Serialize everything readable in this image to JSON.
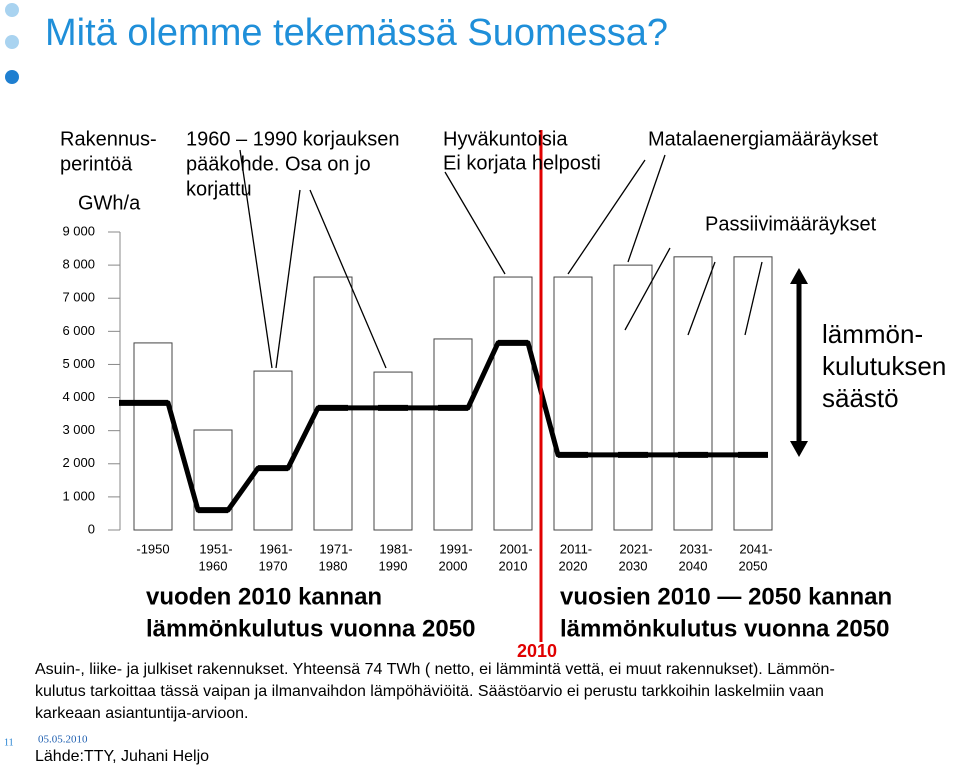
{
  "title": "Mitä olemme tekemässä Suomessa?",
  "chart_data": {
    "type": "bar",
    "y_label": "GWh/a",
    "categories": [
      [
        "-1950"
      ],
      [
        "1951-",
        "1960"
      ],
      [
        "1961-",
        "1970"
      ],
      [
        "1971-",
        "1980"
      ],
      [
        "1981-",
        "1990"
      ],
      [
        "1991-",
        "2000"
      ],
      [
        "2001-",
        "2010"
      ],
      [
        "2011-",
        "2020"
      ],
      [
        "2021-",
        "2030"
      ],
      [
        "2031-",
        "2040"
      ],
      [
        "2041-",
        "2050"
      ]
    ],
    "values": [
      5650,
      3020,
      4800,
      7640,
      4770,
      5770,
      7640,
      7640,
      8000,
      8250,
      8250
    ],
    "color": "#ffffff",
    "line_values": [
      3840,
      600,
      1870,
      3690,
      3690,
      3690,
      5650,
      2270,
      2270,
      2270,
      2270
    ],
    "line_color": "#000000",
    "ylim": [
      0,
      9000
    ],
    "yticks": [
      0,
      {
        "value": 1000,
        "label": "1 000"
      },
      {
        "value": 2000,
        "label": "2 000"
      },
      {
        "value": 3000,
        "label": "3 000"
      },
      {
        "value": 4000,
        "label": "4 000"
      },
      {
        "value": 5000,
        "label": "5 000"
      },
      {
        "value": 6000,
        "label": "6 000"
      },
      {
        "value": 7000,
        "label": "7 000"
      },
      {
        "value": 8000,
        "label": "8 000"
      },
      {
        "value": 9000,
        "label": "9 000"
      }
    ],
    "annotations": {
      "heritage": [
        "Rakennus-",
        "perintöä"
      ],
      "renovation": [
        "1960 – 1990 korjauksen",
        "pääkohde. Osa on jo",
        "korjattu"
      ],
      "good_condition": [
        "Hyväkuntoisia",
        "Ei korjata helposti"
      ],
      "low_energy": "Matalaenergiamääräykset",
      "passive": "Passiivimääräykset",
      "savings": [
        "lämmön-",
        "kulutuksen",
        "säästö"
      ],
      "left_caption": [
        "vuoden 2010 kannan",
        "lämmönkulutus vuonna 2050"
      ],
      "right_caption": [
        "vuosien 2010 — 2050 kannan",
        "lämmönkulutus vuonna 2050"
      ],
      "year": "2010"
    }
  },
  "footnote": [
    "Asuin-, liike- ja julkiset rakennukset. Yhteensä 74 TWh ( netto, ei lämmintä vettä, ei muut rakennukset). Lämmön-",
    "kulutus tarkoittaa tässä vaipan ja ilmanvaihdon lämpöhäviöitä. Säästöarvio ei perustu tarkkoihin laskelmiin vaan",
    "karkeaan asiantuntija-arvioon."
  ],
  "page_number": "11",
  "date": "05.05.2010",
  "source": "Lähde:TTY, Juhani Heljo"
}
